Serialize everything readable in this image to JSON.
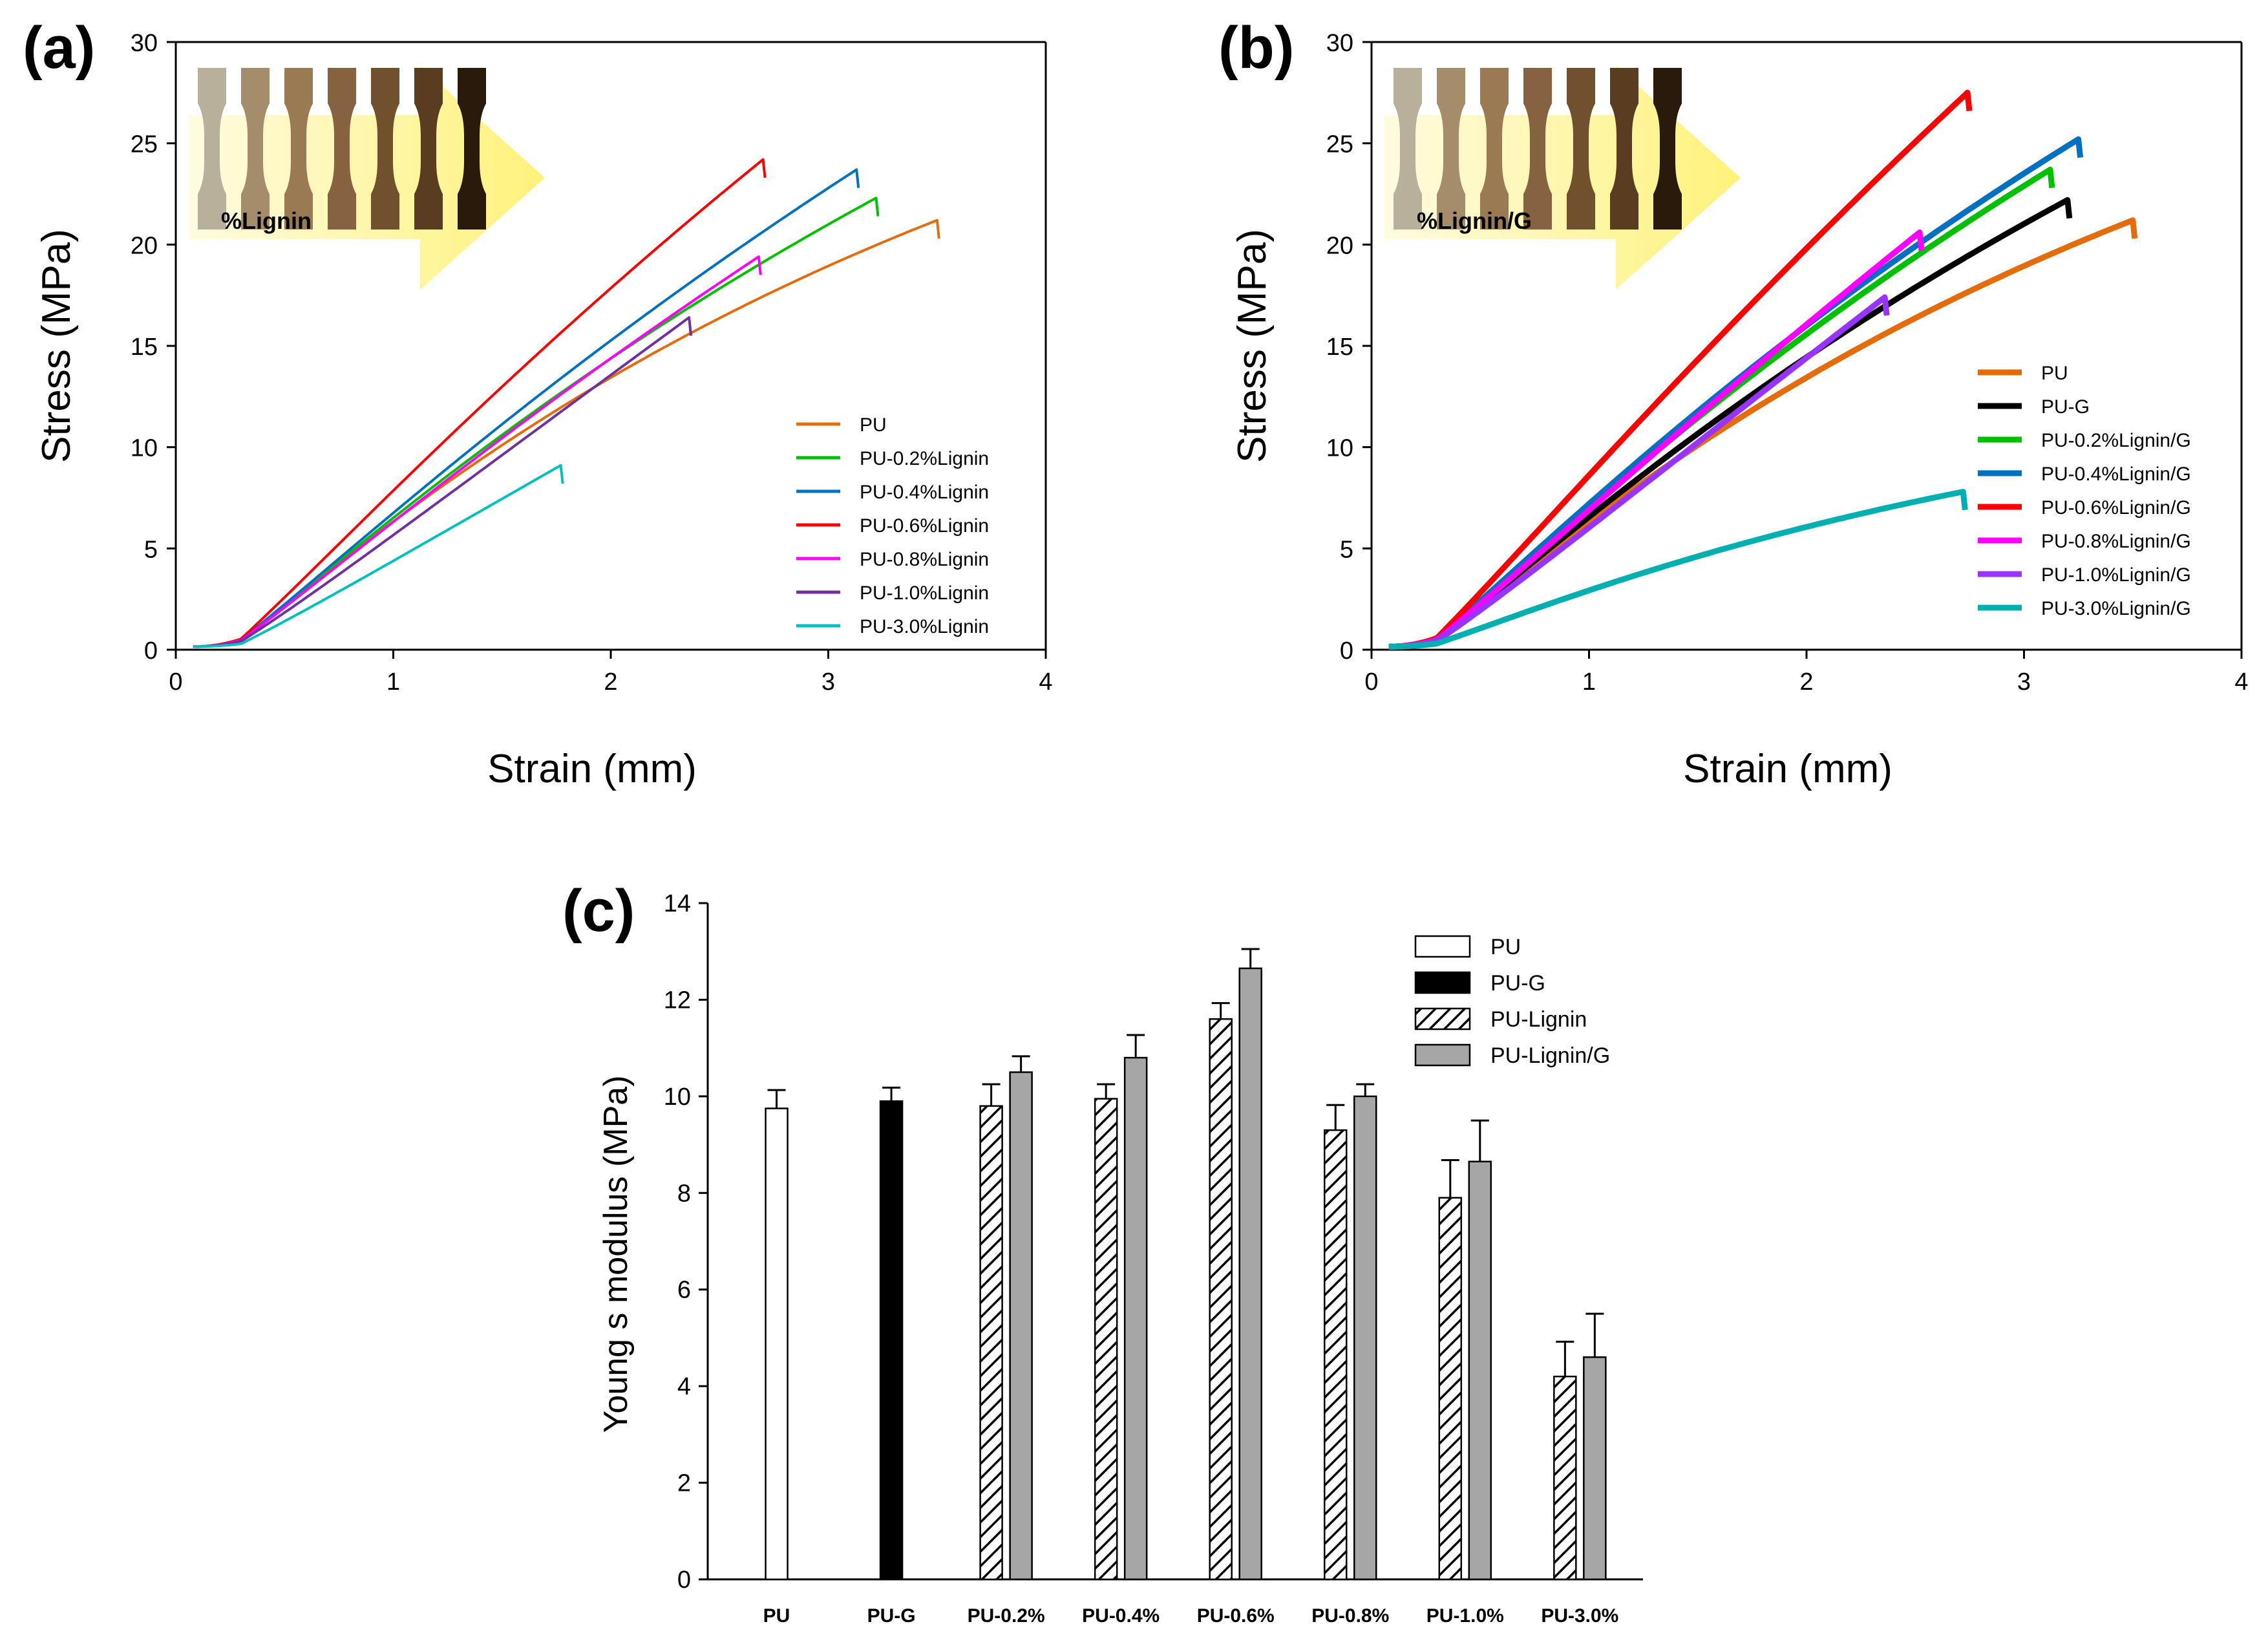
{
  "chart_data": [
    {
      "panel": "(a)",
      "type": "line",
      "xlabel": "Strain (mm)",
      "ylabel": "Stress (MPa)",
      "xlim": [
        0,
        4
      ],
      "ylim": [
        0,
        30
      ],
      "xticks": [
        0,
        1,
        2,
        3,
        4
      ],
      "yticks": [
        0,
        5,
        10,
        15,
        20,
        25,
        30
      ],
      "legend_position": "center-right",
      "inset_label": "%Lignin",
      "series": [
        {
          "name": "PU",
          "color": "#e46c0a",
          "end_x": 3.5,
          "end_y": 21.2,
          "init_slope": 9.8
        },
        {
          "name": "PU-0.2%Lignin",
          "color": "#00c000",
          "end_x": 3.22,
          "end_y": 22.3,
          "init_slope": 9.8
        },
        {
          "name": "PU-0.4%Lignin",
          "color": "#0070c0",
          "end_x": 3.13,
          "end_y": 23.7,
          "init_slope": 10.0
        },
        {
          "name": "PU-0.6%Lignin",
          "color": "#ff0000",
          "end_x": 2.7,
          "end_y": 24.2,
          "init_slope": 11.6
        },
        {
          "name": "PU-0.8%Lignin",
          "color": "#ff00ff",
          "end_x": 2.68,
          "end_y": 19.4,
          "init_slope": 9.3
        },
        {
          "name": "PU-1.0%Lignin",
          "color": "#7030a0",
          "end_x": 2.36,
          "end_y": 16.4,
          "init_slope": 7.9
        },
        {
          "name": "PU-3.0%Lignin",
          "color": "#00c0c0",
          "end_x": 1.77,
          "end_y": 9.1,
          "init_slope": 4.2
        }
      ]
    },
    {
      "panel": "(b)",
      "type": "line",
      "xlabel": "Strain (mm)",
      "ylabel": "Stress (MPa)",
      "xlim": [
        0,
        4
      ],
      "ylim": [
        0,
        30
      ],
      "xticks": [
        0,
        1,
        2,
        3,
        4
      ],
      "yticks": [
        0,
        5,
        10,
        15,
        20,
        25,
        30
      ],
      "legend_position": "center-right",
      "inset_label": "%Lignin/G",
      "series": [
        {
          "name": "PU",
          "color": "#e46c0a",
          "end_x": 3.5,
          "end_y": 21.2,
          "init_slope": 9.8
        },
        {
          "name": "PU-G",
          "color": "#000000",
          "end_x": 3.2,
          "end_y": 22.2,
          "init_slope": 9.9
        },
        {
          "name": "PU-0.2%Lignin/G",
          "color": "#00c000",
          "end_x": 3.12,
          "end_y": 23.7,
          "init_slope": 10.5
        },
        {
          "name": "PU-0.4%Lignin/G",
          "color": "#0070c0",
          "end_x": 3.25,
          "end_y": 25.2,
          "init_slope": 10.8
        },
        {
          "name": "PU-0.6%Lignin/G",
          "color": "#ff0000",
          "end_x": 2.74,
          "end_y": 27.5,
          "init_slope": 12.6
        },
        {
          "name": "PU-0.8%Lignin/G",
          "color": "#ff00ff",
          "end_x": 2.52,
          "end_y": 20.6,
          "init_slope": 10.0
        },
        {
          "name": "PU-1.0%Lignin/G",
          "color": "#9933ff",
          "end_x": 2.36,
          "end_y": 17.4,
          "init_slope": 8.6
        },
        {
          "name": "PU-3.0%Lignin/G",
          "color": "#00b0b0",
          "end_x": 2.72,
          "end_y": 7.8,
          "init_slope": 4.6
        }
      ]
    },
    {
      "panel": "(c)",
      "type": "bar",
      "xlabel": "",
      "ylabel": "Young s modulus (MPa)",
      "ylim": [
        0,
        14
      ],
      "yticks": [
        0,
        2,
        4,
        6,
        8,
        10,
        12,
        14
      ],
      "legend_position": "top-right",
      "categories": [
        "PU",
        "PU-G",
        "PU-0.2%",
        "PU-0.4%",
        "PU-0.6%",
        "PU-0.8%",
        "PU-1.0%",
        "PU-3.0%"
      ],
      "series": [
        {
          "name": "PU",
          "style": "white",
          "values": [
            9.75,
            null,
            null,
            null,
            null,
            null,
            null,
            null
          ],
          "errors": [
            0.38,
            null,
            null,
            null,
            null,
            null,
            null,
            null
          ]
        },
        {
          "name": "PU-G",
          "style": "black",
          "values": [
            null,
            9.9,
            null,
            null,
            null,
            null,
            null,
            null
          ],
          "errors": [
            null,
            0.28,
            null,
            null,
            null,
            null,
            null,
            null
          ]
        },
        {
          "name": "PU-Lignin",
          "style": "hatched",
          "values": [
            null,
            null,
            9.8,
            9.95,
            11.6,
            9.3,
            7.9,
            4.2
          ],
          "errors": [
            null,
            null,
            0.45,
            0.3,
            0.33,
            0.52,
            0.78,
            0.72
          ]
        },
        {
          "name": "PU-Lignin/G",
          "style": "gray",
          "values": [
            null,
            null,
            10.5,
            10.8,
            12.65,
            10.0,
            8.65,
            4.6
          ],
          "errors": [
            null,
            null,
            0.33,
            0.47,
            0.4,
            0.25,
            0.85,
            0.9
          ]
        }
      ]
    }
  ]
}
